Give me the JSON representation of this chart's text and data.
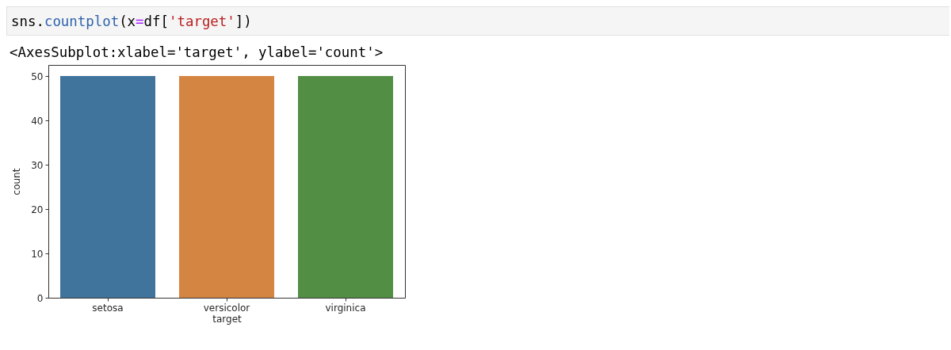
{
  "chart_data": {
    "type": "bar",
    "categories": [
      "setosa",
      "versicolor",
      "virginica"
    ],
    "values": [
      50,
      50,
      50
    ],
    "colors": [
      "#41749d",
      "#d58542",
      "#528f45"
    ],
    "xlabel": "target",
    "ylabel": "count",
    "ylim": [
      0,
      52.5
    ],
    "yticks": [
      0,
      10,
      20,
      30,
      40,
      50
    ],
    "annotations": [
      "sns.countplot(x=df['target'])",
      "<AxesSubplot:xlabel='target', ylabel='count'>"
    ]
  }
}
